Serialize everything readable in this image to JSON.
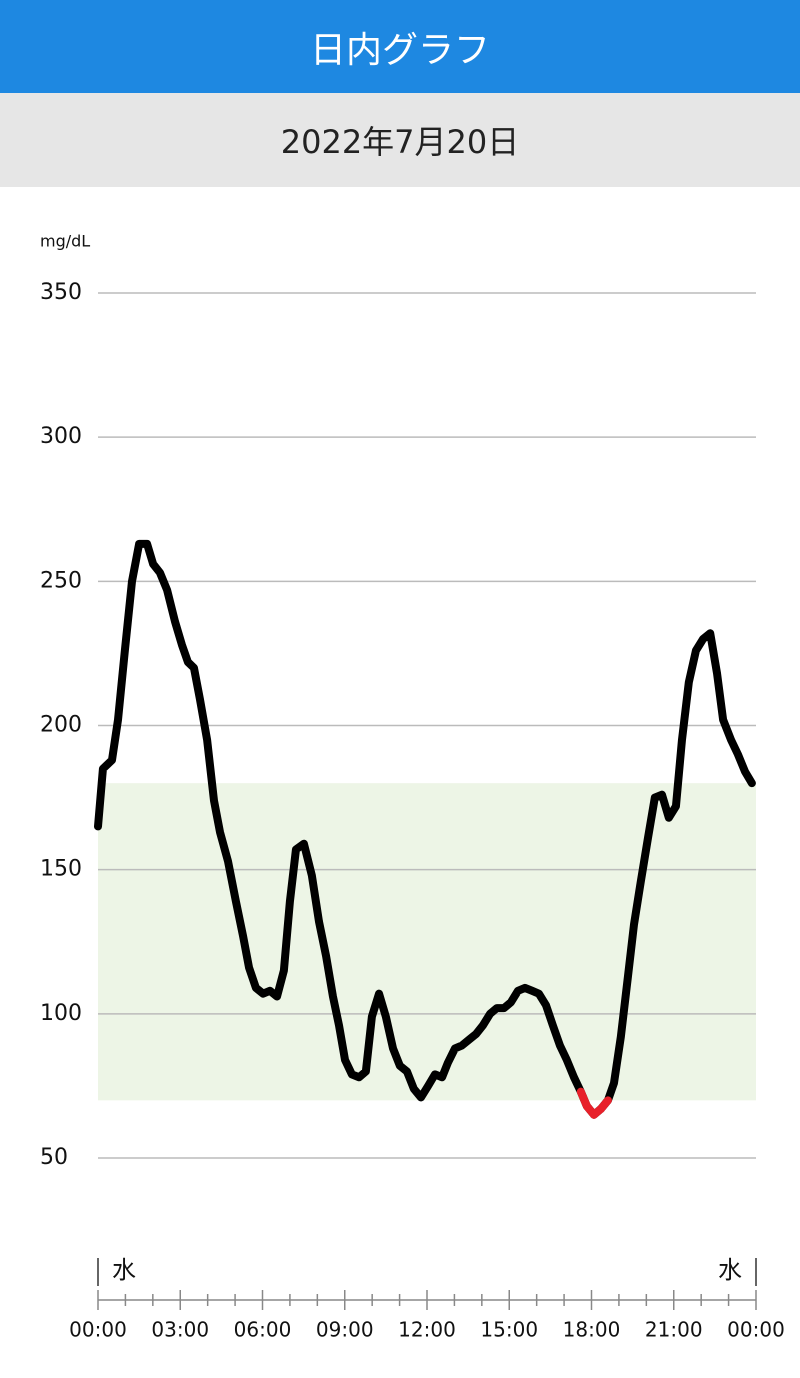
{
  "header": {
    "title": "日内グラフ",
    "date": "2022年7月20日"
  },
  "chart_data": {
    "type": "line",
    "y_label": "mg/dL",
    "x": [
      0,
      0.18,
      0.51,
      0.73,
      0.98,
      1.24,
      1.5,
      1.79,
      2.01,
      2.26,
      2.52,
      2.81,
      3.06,
      3.28,
      3.5,
      3.72,
      3.98,
      4.23,
      4.45,
      4.74,
      5.03,
      5.29,
      5.51,
      5.76,
      6.02,
      6.27,
      6.53,
      6.78,
      7.0,
      7.22,
      7.51,
      7.8,
      8.06,
      8.32,
      8.57,
      8.79,
      9.01,
      9.26,
      9.52,
      9.77,
      9.99,
      10.25,
      10.5,
      10.76,
      11.01,
      11.27,
      11.52,
      11.78,
      12.04,
      12.29,
      12.55,
      12.76,
      13.02,
      13.27,
      13.53,
      13.79,
      14.04,
      14.3,
      14.55,
      14.81,
      15.06,
      15.32,
      15.57,
      15.83,
      16.08,
      16.34,
      16.59,
      16.85,
      17.1,
      17.36,
      17.61,
      17.83,
      18.09,
      18.34,
      18.6,
      18.82,
      19.07,
      19.33,
      19.55,
      19.8,
      20.06,
      20.31,
      20.57,
      20.82,
      21.08,
      21.3,
      21.55,
      21.81,
      22.07,
      22.33,
      22.58,
      22.8,
      23.09,
      23.34,
      23.6,
      23.85
    ],
    "series": [
      {
        "color": "#000000",
        "low_color": "#e8202a",
        "values": [
          165,
          185,
          188,
          202,
          226,
          250,
          263,
          263,
          256,
          253,
          247,
          236,
          228,
          222,
          220,
          209,
          195,
          174,
          163,
          153,
          139,
          127,
          116,
          109,
          107,
          108,
          106,
          115,
          139,
          157,
          159,
          148,
          132,
          120,
          106,
          96,
          84,
          79,
          78,
          80,
          99,
          107,
          99,
          88,
          82,
          80,
          74,
          71,
          75,
          79,
          78,
          83,
          88,
          89,
          91,
          93,
          96,
          100,
          102,
          102,
          104,
          108,
          109,
          108,
          107,
          103,
          96,
          89,
          84,
          78,
          73,
          68,
          65,
          67,
          70,
          76,
          92,
          113,
          131,
          146,
          161,
          175,
          176,
          168,
          172,
          195,
          215,
          226,
          230,
          232,
          218,
          202,
          195,
          190,
          184,
          180
        ]
      }
    ],
    "target_range": [
      70,
      180
    ],
    "target_color": "#edf5e6",
    "ylim": [
      50,
      350
    ],
    "yticks": [
      50,
      100,
      150,
      200,
      250,
      300,
      350
    ],
    "grid": true,
    "xlim": [
      0,
      24
    ],
    "xticks": [
      {
        "value": 0,
        "label": "00:00"
      },
      {
        "value": 3,
        "label": "03:00"
      },
      {
        "value": 6,
        "label": "06:00"
      },
      {
        "value": 9,
        "label": "09:00"
      },
      {
        "value": 12,
        "label": "12:00"
      },
      {
        "value": 15,
        "label": "15:00"
      },
      {
        "value": 18,
        "label": "18:00"
      },
      {
        "value": 21,
        "label": "21:00"
      },
      {
        "value": 24,
        "label": "00:00"
      }
    ],
    "xminor_ticks": [
      1,
      2,
      4,
      5,
      7,
      8,
      10,
      11,
      13,
      14,
      16,
      17,
      19,
      20,
      22,
      23
    ],
    "day_labels": [
      "水",
      "水"
    ]
  }
}
